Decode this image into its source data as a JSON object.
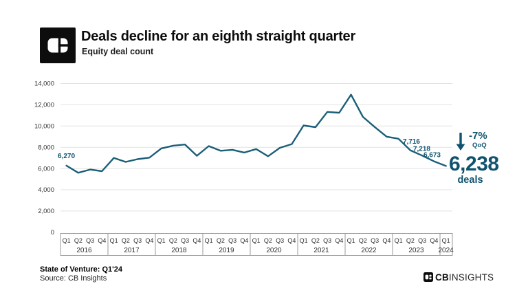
{
  "header": {
    "title": "Deals decline for an eighth straight quarter",
    "subtitle": "Equity deal count"
  },
  "annotation": {
    "change": "-7%",
    "period": "QoQ",
    "value": "6,238",
    "unit": "deals"
  },
  "footer": {
    "report": "State of Venture: Q1'24",
    "source": "Source: CB Insights",
    "brand_cb": "CB",
    "brand_insights": "INSIGHTS"
  },
  "colors": {
    "accent": "#0f536f",
    "line": "#1a5e78",
    "grid": "#e2e2e2",
    "axis_border": "#999999",
    "tick_text": "#333333"
  },
  "chart_data": {
    "type": "line",
    "title": "Deals decline for an eighth straight quarter",
    "ylabel": "Equity deal count",
    "ylim": [
      0,
      14000
    ],
    "y_ticks": [
      0,
      2000,
      4000,
      6000,
      8000,
      10000,
      12000,
      14000
    ],
    "grid": "horizontal",
    "legend": "none",
    "x": [
      "Q1'16",
      "Q2'16",
      "Q3'16",
      "Q4'16",
      "Q1'17",
      "Q2'17",
      "Q3'17",
      "Q4'17",
      "Q1'18",
      "Q2'18",
      "Q3'18",
      "Q4'18",
      "Q1'19",
      "Q2'19",
      "Q3'19",
      "Q4'19",
      "Q1'20",
      "Q2'20",
      "Q3'20",
      "Q4'20",
      "Q1'21",
      "Q2'21",
      "Q3'21",
      "Q4'21",
      "Q1'22",
      "Q2'22",
      "Q3'22",
      "Q4'22",
      "Q1'23",
      "Q2'23",
      "Q3'23",
      "Q4'23",
      "Q1'24"
    ],
    "values": [
      6270,
      5600,
      5900,
      5750,
      7000,
      6620,
      6880,
      7020,
      7890,
      8150,
      8260,
      7200,
      8110,
      7670,
      7760,
      7500,
      7830,
      7150,
      7950,
      8300,
      10050,
      9890,
      11330,
      11250,
      12950,
      10860,
      9900,
      9000,
      8800,
      7716,
      7218,
      6673,
      6238
    ],
    "year_groups": [
      {
        "year": "2016",
        "quarters": [
          "Q1",
          "Q2",
          "Q3",
          "Q4"
        ]
      },
      {
        "year": "2017",
        "quarters": [
          "Q1",
          "Q2",
          "Q3",
          "Q4"
        ]
      },
      {
        "year": "2018",
        "quarters": [
          "Q1",
          "Q2",
          "Q3",
          "Q4"
        ]
      },
      {
        "year": "2019",
        "quarters": [
          "Q1",
          "Q2",
          "Q3",
          "Q4"
        ]
      },
      {
        "year": "2020",
        "quarters": [
          "Q1",
          "Q2",
          "Q3",
          "Q4"
        ]
      },
      {
        "year": "2021",
        "quarters": [
          "Q1",
          "Q2",
          "Q3",
          "Q4"
        ]
      },
      {
        "year": "2022",
        "quarters": [
          "Q1",
          "Q2",
          "Q3",
          "Q4"
        ]
      },
      {
        "year": "2023",
        "quarters": [
          "Q1",
          "Q2",
          "Q3",
          "Q4"
        ]
      },
      {
        "year": "2024",
        "quarters": [
          "Q1"
        ]
      }
    ],
    "point_labels": [
      {
        "index": 0,
        "label": "6,270"
      },
      {
        "index": 29,
        "label": "7,716"
      },
      {
        "index": 30,
        "label": "7,218"
      },
      {
        "index": 31,
        "label": "6,673"
      }
    ]
  }
}
